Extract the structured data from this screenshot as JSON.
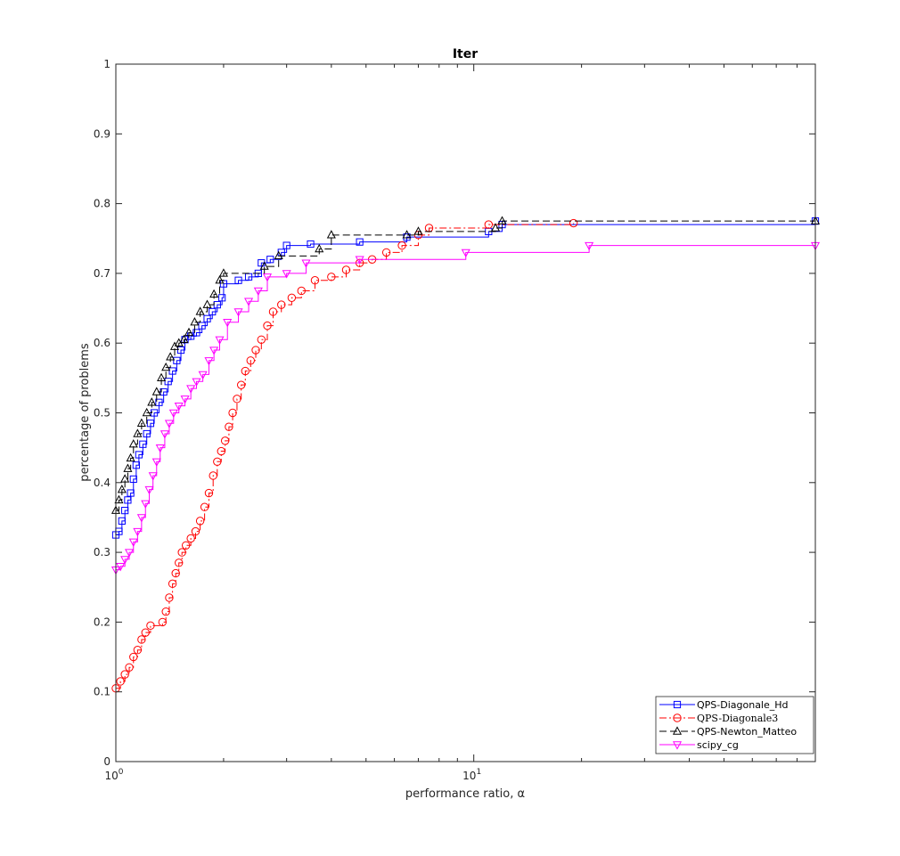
{
  "chart_data": {
    "type": "line",
    "title": "Iter",
    "xlabel": "performance ratio, α",
    "ylabel": "percentage of problems",
    "xscale": "log",
    "xlim": [
      1,
      90
    ],
    "ylim": [
      0,
      1
    ],
    "x_ticks": [
      {
        "value": 1,
        "base": "10",
        "exp": "0"
      },
      {
        "value": 10,
        "base": "10",
        "exp": "1"
      }
    ],
    "y_ticks": [
      "0",
      "0.1",
      "0.2",
      "0.3",
      "0.4",
      "0.5",
      "0.6",
      "0.7",
      "0.8",
      "0.9",
      "1"
    ],
    "grid": false,
    "legend_location": "bottom-right",
    "series": [
      {
        "name": "QPS-Diagonale_Hd",
        "color": "#0000ff",
        "line_style": "solid",
        "marker": "square",
        "points": [
          [
            1.0,
            0.325
          ],
          [
            1.02,
            0.33
          ],
          [
            1.04,
            0.345
          ],
          [
            1.06,
            0.36
          ],
          [
            1.08,
            0.375
          ],
          [
            1.1,
            0.385
          ],
          [
            1.12,
            0.405
          ],
          [
            1.14,
            0.425
          ],
          [
            1.16,
            0.44
          ],
          [
            1.19,
            0.455
          ],
          [
            1.22,
            0.47
          ],
          [
            1.25,
            0.485
          ],
          [
            1.28,
            0.5
          ],
          [
            1.32,
            0.515
          ],
          [
            1.36,
            0.53
          ],
          [
            1.4,
            0.545
          ],
          [
            1.44,
            0.56
          ],
          [
            1.48,
            0.575
          ],
          [
            1.52,
            0.59
          ],
          [
            1.56,
            0.605
          ],
          [
            1.62,
            0.61
          ],
          [
            1.68,
            0.615
          ],
          [
            1.74,
            0.625
          ],
          [
            1.8,
            0.635
          ],
          [
            1.86,
            0.645
          ],
          [
            1.92,
            0.655
          ],
          [
            1.98,
            0.665
          ],
          [
            2.0,
            0.685
          ],
          [
            2.2,
            0.69
          ],
          [
            2.35,
            0.695
          ],
          [
            2.5,
            0.7
          ],
          [
            2.55,
            0.715
          ],
          [
            2.7,
            0.72
          ],
          [
            2.9,
            0.73
          ],
          [
            3.0,
            0.74
          ],
          [
            3.5,
            0.742
          ],
          [
            4.8,
            0.745
          ],
          [
            6.5,
            0.752
          ],
          [
            11.0,
            0.76
          ],
          [
            12.0,
            0.77
          ],
          [
            90,
            0.775
          ]
        ]
      },
      {
        "name": "QPS-Diagonale3",
        "color": "#ff0000",
        "line_style": "dashdot",
        "marker": "circle",
        "points": [
          [
            1.0,
            0.105
          ],
          [
            1.03,
            0.115
          ],
          [
            1.06,
            0.125
          ],
          [
            1.09,
            0.135
          ],
          [
            1.12,
            0.15
          ],
          [
            1.15,
            0.16
          ],
          [
            1.18,
            0.175
          ],
          [
            1.21,
            0.185
          ],
          [
            1.25,
            0.195
          ],
          [
            1.35,
            0.2
          ],
          [
            1.38,
            0.215
          ],
          [
            1.41,
            0.235
          ],
          [
            1.44,
            0.255
          ],
          [
            1.47,
            0.27
          ],
          [
            1.5,
            0.285
          ],
          [
            1.53,
            0.3
          ],
          [
            1.57,
            0.31
          ],
          [
            1.62,
            0.32
          ],
          [
            1.67,
            0.33
          ],
          [
            1.72,
            0.345
          ],
          [
            1.77,
            0.365
          ],
          [
            1.82,
            0.385
          ],
          [
            1.87,
            0.41
          ],
          [
            1.92,
            0.43
          ],
          [
            1.97,
            0.445
          ],
          [
            2.02,
            0.46
          ],
          [
            2.07,
            0.48
          ],
          [
            2.12,
            0.5
          ],
          [
            2.18,
            0.52
          ],
          [
            2.24,
            0.54
          ],
          [
            2.3,
            0.56
          ],
          [
            2.38,
            0.575
          ],
          [
            2.46,
            0.59
          ],
          [
            2.55,
            0.605
          ],
          [
            2.65,
            0.625
          ],
          [
            2.75,
            0.645
          ],
          [
            2.9,
            0.655
          ],
          [
            3.1,
            0.665
          ],
          [
            3.3,
            0.675
          ],
          [
            3.6,
            0.69
          ],
          [
            4.0,
            0.695
          ],
          [
            4.4,
            0.705
          ],
          [
            4.8,
            0.715
          ],
          [
            5.2,
            0.72
          ],
          [
            5.7,
            0.73
          ],
          [
            6.3,
            0.74
          ],
          [
            7.0,
            0.755
          ],
          [
            7.5,
            0.765
          ],
          [
            11.0,
            0.77
          ],
          [
            19.0,
            0.772
          ]
        ]
      },
      {
        "name": "QPS-Newton_Matteo",
        "color": "#000000",
        "line_style": "dashed",
        "marker": "triangle-up",
        "points": [
          [
            1.0,
            0.36
          ],
          [
            1.02,
            0.375
          ],
          [
            1.04,
            0.39
          ],
          [
            1.06,
            0.405
          ],
          [
            1.08,
            0.42
          ],
          [
            1.1,
            0.435
          ],
          [
            1.12,
            0.455
          ],
          [
            1.15,
            0.47
          ],
          [
            1.18,
            0.485
          ],
          [
            1.22,
            0.5
          ],
          [
            1.26,
            0.515
          ],
          [
            1.3,
            0.53
          ],
          [
            1.34,
            0.55
          ],
          [
            1.38,
            0.565
          ],
          [
            1.42,
            0.58
          ],
          [
            1.46,
            0.595
          ],
          [
            1.5,
            0.6
          ],
          [
            1.55,
            0.605
          ],
          [
            1.6,
            0.615
          ],
          [
            1.66,
            0.63
          ],
          [
            1.72,
            0.645
          ],
          [
            1.8,
            0.655
          ],
          [
            1.88,
            0.67
          ],
          [
            1.95,
            0.69
          ],
          [
            2.0,
            0.7
          ],
          [
            2.6,
            0.71
          ],
          [
            2.85,
            0.725
          ],
          [
            3.7,
            0.735
          ],
          [
            4.0,
            0.755
          ],
          [
            6.5,
            0.755
          ],
          [
            7.0,
            0.76
          ],
          [
            11.5,
            0.765
          ],
          [
            12.0,
            0.775
          ],
          [
            90,
            0.775
          ]
        ]
      },
      {
        "name": "scipy_cg",
        "color": "#ff00ff",
        "line_style": "solid",
        "marker": "triangle-down",
        "points": [
          [
            1.0,
            0.275
          ],
          [
            1.03,
            0.28
          ],
          [
            1.06,
            0.29
          ],
          [
            1.09,
            0.3
          ],
          [
            1.12,
            0.315
          ],
          [
            1.15,
            0.33
          ],
          [
            1.18,
            0.35
          ],
          [
            1.21,
            0.37
          ],
          [
            1.24,
            0.39
          ],
          [
            1.27,
            0.41
          ],
          [
            1.3,
            0.43
          ],
          [
            1.33,
            0.45
          ],
          [
            1.37,
            0.47
          ],
          [
            1.41,
            0.485
          ],
          [
            1.45,
            0.5
          ],
          [
            1.5,
            0.51
          ],
          [
            1.56,
            0.52
          ],
          [
            1.62,
            0.535
          ],
          [
            1.68,
            0.545
          ],
          [
            1.75,
            0.555
          ],
          [
            1.82,
            0.575
          ],
          [
            1.88,
            0.59
          ],
          [
            1.95,
            0.605
          ],
          [
            2.05,
            0.63
          ],
          [
            2.2,
            0.645
          ],
          [
            2.35,
            0.66
          ],
          [
            2.5,
            0.675
          ],
          [
            2.65,
            0.695
          ],
          [
            3.0,
            0.7
          ],
          [
            3.4,
            0.715
          ],
          [
            4.8,
            0.72
          ],
          [
            9.5,
            0.73
          ],
          [
            21.0,
            0.74
          ],
          [
            90,
            0.74
          ]
        ]
      }
    ]
  }
}
